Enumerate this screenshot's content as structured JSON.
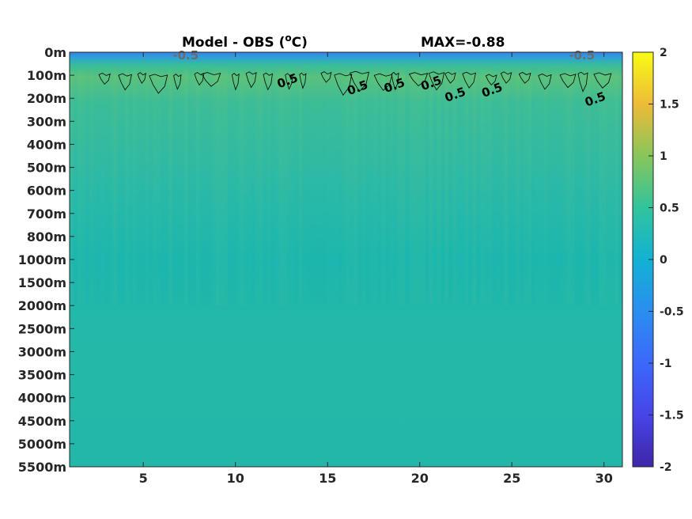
{
  "chart_data": {
    "type": "heatmap",
    "title": "Model - OBS (°C)",
    "title_prefix": "Model - OBS (",
    "title_sup": "o",
    "title_suffix": "C)",
    "max_label": "MAX=-0.88",
    "x_ticks": [
      5,
      10,
      15,
      20,
      25,
      30
    ],
    "xlim": [
      1,
      31
    ],
    "y_tick_labels": [
      "0m",
      "100m",
      "200m",
      "300m",
      "400m",
      "500m",
      "600m",
      "700m",
      "800m",
      "1000m",
      "1500m",
      "2000m",
      "2500m",
      "3000m",
      "3500m",
      "4000m",
      "4500m",
      "5000m",
      "5500m"
    ],
    "colorbar": {
      "ticks": [
        2,
        1.5,
        1,
        0.5,
        0,
        -0.5,
        -1,
        -1.5,
        -2
      ],
      "tick_labels": [
        "2",
        "1.5",
        "1",
        "0.5",
        "0",
        "-0.5",
        "-1",
        "-1.5",
        "-2"
      ],
      "clim": [
        -2,
        2
      ],
      "colormap": "parula"
    },
    "contour_labels": [
      {
        "text": "-0.5",
        "x": 7.3,
        "depth_index": 0.1
      },
      {
        "text": "-0.5",
        "x": 28.8,
        "depth_index": 0.1
      },
      {
        "text": "0.5",
        "x": 12.9,
        "depth_index": 1.2
      },
      {
        "text": "0.5",
        "x": 16.7,
        "depth_index": 1.5
      },
      {
        "text": "0.5",
        "x": 18.7,
        "depth_index": 1.4
      },
      {
        "text": "0.5",
        "x": 20.7,
        "depth_index": 1.3
      },
      {
        "text": "0.5",
        "x": 22.0,
        "depth_index": 1.8
      },
      {
        "text": "0.5",
        "x": 24.0,
        "depth_index": 1.6
      },
      {
        "text": "0.5",
        "x": 29.6,
        "depth_index": 2.0
      }
    ],
    "field": {
      "surface_value": -0.55,
      "subsurface_value": 0.35,
      "deep_value": 0.12,
      "bottom_value": 0.08
    },
    "grid": false
  }
}
